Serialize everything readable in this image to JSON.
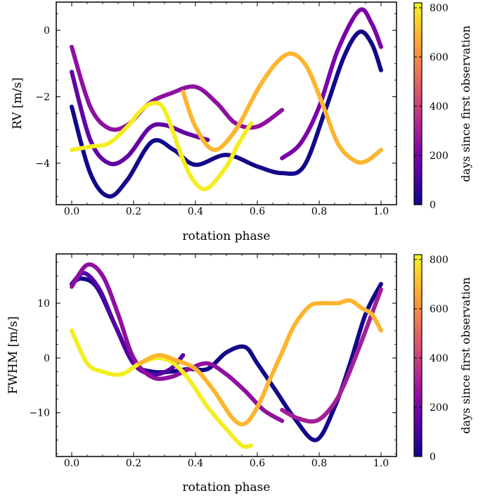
{
  "chart_data": [
    {
      "type": "scatter",
      "xlabel": "rotation phase",
      "ylabel": "RV [m/s]",
      "xlim": [
        -0.05,
        1.05
      ],
      "ylim": [
        -5.25,
        0.85
      ],
      "xticks": [
        0.0,
        0.2,
        0.4,
        0.6,
        0.8,
        1.0
      ],
      "xtick_labels": [
        "0.0",
        "0.2",
        "0.4",
        "0.6",
        "0.8",
        "1.0"
      ],
      "yticks": [
        0,
        -2,
        -4
      ],
      "ytick_labels": [
        "0",
        "−2",
        "−4"
      ],
      "colorbar": {
        "label": "days since first observation",
        "colormap": "plasma",
        "range": [
          0,
          820
        ],
        "ticks": [
          0,
          200,
          400,
          600,
          800
        ],
        "tick_labels": [
          "0",
          "200",
          "400",
          "600",
          "800"
        ]
      },
      "series": [
        {
          "days": 10,
          "points": [
            [
              0.0,
              -2.3
            ],
            [
              0.06,
              -4.3
            ],
            [
              0.12,
              -5.0
            ],
            [
              0.18,
              -4.5
            ],
            [
              0.26,
              -3.35
            ],
            [
              0.33,
              -3.6
            ],
            [
              0.4,
              -4.05
            ],
            [
              0.5,
              -3.75
            ],
            [
              0.6,
              -4.1
            ],
            [
              0.68,
              -4.3
            ],
            [
              0.75,
              -4.1
            ],
            [
              0.82,
              -2.4
            ],
            [
              0.88,
              -0.8
            ],
            [
              0.93,
              -0.05
            ],
            [
              0.97,
              -0.4
            ],
            [
              1.0,
              -1.2
            ]
          ]
        },
        {
          "days": 150,
          "points": [
            [
              0.0,
              -1.25
            ],
            [
              0.06,
              -3.3
            ],
            [
              0.12,
              -4.0
            ],
            [
              0.18,
              -3.8
            ],
            [
              0.25,
              -2.95
            ],
            [
              0.3,
              -2.85
            ],
            [
              0.37,
              -3.1
            ],
            [
              0.44,
              -3.3
            ]
          ]
        },
        {
          "days": 250,
          "points": [
            [
              0.0,
              -0.5
            ],
            [
              0.06,
              -2.3
            ],
            [
              0.12,
              -2.95
            ],
            [
              0.18,
              -2.85
            ],
            [
              0.25,
              -2.2
            ],
            [
              0.32,
              -1.9
            ],
            [
              0.4,
              -1.7
            ],
            [
              0.47,
              -2.2
            ],
            [
              0.53,
              -2.8
            ],
            [
              0.6,
              -2.9
            ],
            [
              0.68,
              -2.4
            ]
          ]
        },
        {
          "days": 200,
          "points": [
            [
              0.68,
              -3.85
            ],
            [
              0.74,
              -3.4
            ],
            [
              0.8,
              -2.3
            ],
            [
              0.86,
              -0.6
            ],
            [
              0.93,
              0.6
            ],
            [
              0.97,
              0.2
            ],
            [
              1.0,
              -0.5
            ]
          ]
        },
        {
          "days": 800,
          "points": [
            [
              0.0,
              -3.6
            ],
            [
              0.06,
              -3.5
            ],
            [
              0.12,
              -3.4
            ],
            [
              0.18,
              -2.9
            ],
            [
              0.22,
              -2.45
            ],
            [
              0.26,
              -2.2
            ],
            [
              0.3,
              -2.4
            ],
            [
              0.36,
              -3.9
            ],
            [
              0.4,
              -4.6
            ],
            [
              0.44,
              -4.75
            ],
            [
              0.5,
              -4.1
            ],
            [
              0.54,
              -3.4
            ],
            [
              0.58,
              -2.8
            ]
          ]
        },
        {
          "days": 690,
          "points": [
            [
              0.36,
              -1.85
            ],
            [
              0.4,
              -2.9
            ],
            [
              0.46,
              -3.6
            ],
            [
              0.53,
              -3.0
            ],
            [
              0.6,
              -1.8
            ],
            [
              0.66,
              -1.0
            ],
            [
              0.71,
              -0.7
            ],
            [
              0.76,
              -1.1
            ],
            [
              0.81,
              -2.2
            ],
            [
              0.86,
              -3.4
            ],
            [
              0.91,
              -3.9
            ],
            [
              0.95,
              -3.95
            ],
            [
              1.0,
              -3.6
            ]
          ]
        }
      ]
    },
    {
      "type": "scatter",
      "xlabel": "rotation phase",
      "ylabel": "FWHM [m/s]",
      "xlim": [
        -0.05,
        1.05
      ],
      "ylim": [
        -18,
        19
      ],
      "xticks": [
        0.0,
        0.2,
        0.4,
        0.6,
        0.8,
        1.0
      ],
      "xtick_labels": [
        "0.0",
        "0.2",
        "0.4",
        "0.6",
        "0.8",
        "1.0"
      ],
      "yticks": [
        10,
        0,
        -10
      ],
      "ytick_labels": [
        "10",
        "0",
        "−10"
      ],
      "colorbar": {
        "label": "days since first observation",
        "colormap": "plasma",
        "range": [
          0,
          820
        ],
        "ticks": [
          0,
          200,
          400,
          600,
          800
        ],
        "tick_labels": [
          "0",
          "200",
          "400",
          "600",
          "800"
        ]
      },
      "series": [
        {
          "days": 10,
          "points": [
            [
              0.0,
              13.5
            ],
            [
              0.03,
              14.5
            ],
            [
              0.08,
              13
            ],
            [
              0.14,
              6
            ],
            [
              0.2,
              -1
            ],
            [
              0.26,
              -2.5
            ],
            [
              0.32,
              -2.5
            ],
            [
              0.38,
              -2.0
            ],
            [
              0.44,
              -2.0
            ],
            [
              0.5,
              1
            ],
            [
              0.56,
              2
            ],
            [
              0.6,
              -1
            ],
            [
              0.66,
              -6
            ],
            [
              0.72,
              -11
            ],
            [
              0.79,
              -15
            ],
            [
              0.85,
              -9
            ],
            [
              0.9,
              -1
            ],
            [
              0.95,
              8
            ],
            [
              1.0,
              13.5
            ]
          ]
        },
        {
          "days": 120,
          "points": [
            [
              0.0,
              13.5
            ],
            [
              0.04,
              15.5
            ],
            [
              0.09,
              12.5
            ],
            [
              0.14,
              6
            ],
            [
              0.2,
              -1
            ],
            [
              0.26,
              -3
            ],
            [
              0.32,
              -2
            ],
            [
              0.36,
              0.5
            ]
          ]
        },
        {
          "days": 250,
          "points": [
            [
              0.0,
              13
            ],
            [
              0.05,
              17
            ],
            [
              0.1,
              15
            ],
            [
              0.15,
              8
            ],
            [
              0.2,
              0
            ],
            [
              0.26,
              -3.5
            ],
            [
              0.32,
              -3.5
            ],
            [
              0.38,
              -2
            ],
            [
              0.44,
              -1
            ],
            [
              0.5,
              -3
            ],
            [
              0.56,
              -6
            ],
            [
              0.62,
              -9.5
            ],
            [
              0.68,
              -11.5
            ]
          ]
        },
        {
          "days": 300,
          "points": [
            [
              0.68,
              -9.5
            ],
            [
              0.73,
              -11
            ],
            [
              0.79,
              -11.5
            ],
            [
              0.84,
              -9
            ],
            [
              0.88,
              -5
            ],
            [
              0.93,
              2
            ],
            [
              0.97,
              8
            ],
            [
              1.0,
              12.5
            ]
          ]
        },
        {
          "days": 800,
          "points": [
            [
              0.0,
              5
            ],
            [
              0.05,
              -1
            ],
            [
              0.1,
              -2.5
            ],
            [
              0.16,
              -3
            ],
            [
              0.22,
              -1
            ],
            [
              0.28,
              0
            ],
            [
              0.33,
              -1
            ],
            [
              0.38,
              -4
            ],
            [
              0.44,
              -9
            ],
            [
              0.5,
              -13
            ],
            [
              0.55,
              -16
            ],
            [
              0.58,
              -16
            ]
          ]
        },
        {
          "days": 690,
          "points": [
            [
              0.22,
              -1
            ],
            [
              0.28,
              0.5
            ],
            [
              0.34,
              -0.5
            ],
            [
              0.4,
              -2
            ],
            [
              0.46,
              -6
            ],
            [
              0.52,
              -11
            ],
            [
              0.56,
              -12
            ],
            [
              0.6,
              -9
            ],
            [
              0.64,
              -4
            ],
            [
              0.68,
              1
            ],
            [
              0.72,
              6
            ],
            [
              0.77,
              9.5
            ],
            [
              0.81,
              10
            ],
            [
              0.86,
              10
            ],
            [
              0.9,
              10.5
            ],
            [
              0.94,
              9
            ],
            [
              0.97,
              8
            ],
            [
              1.0,
              5
            ]
          ]
        }
      ]
    }
  ]
}
